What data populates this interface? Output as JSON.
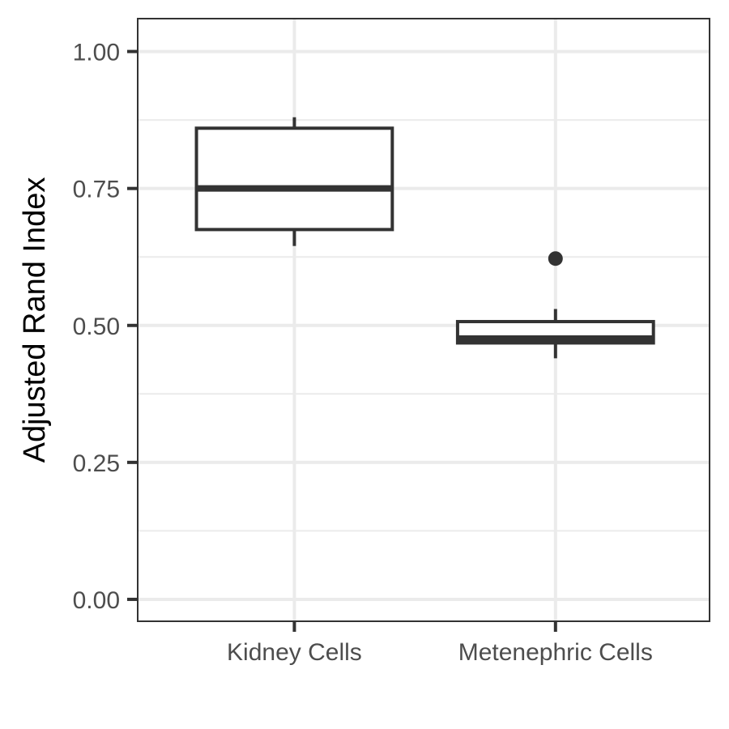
{
  "chart_data": {
    "type": "boxplot",
    "title": "",
    "xlabel": "",
    "ylabel": "Adjusted Rand Index",
    "ylim": [
      -0.04,
      1.06
    ],
    "yticks": [
      "0.00",
      "0.25",
      "0.50",
      "0.75",
      "1.00"
    ],
    "ytick_values": [
      0.0,
      0.25,
      0.5,
      0.75,
      1.0
    ],
    "ygrid_minor": [
      0.125,
      0.375,
      0.625,
      0.875
    ],
    "categories": [
      "Kidney Cells",
      "Metenephric Cells"
    ],
    "boxes": [
      {
        "category": "Kidney Cells",
        "whisker_low": 0.645,
        "q1": 0.675,
        "median": 0.75,
        "q3": 0.86,
        "whisker_high": 0.88,
        "outliers": []
      },
      {
        "category": "Metenephric Cells",
        "whisker_low": 0.44,
        "q1": 0.468,
        "median": 0.476,
        "q3": 0.507,
        "whisker_high": 0.53,
        "outliers": [
          0.622
        ]
      }
    ],
    "grid": true,
    "legend": "none",
    "colors": {
      "box_stroke": "#333333",
      "grid": "#ebebeb",
      "panel_border": "#333333",
      "box_fill": "#ffffff"
    }
  }
}
